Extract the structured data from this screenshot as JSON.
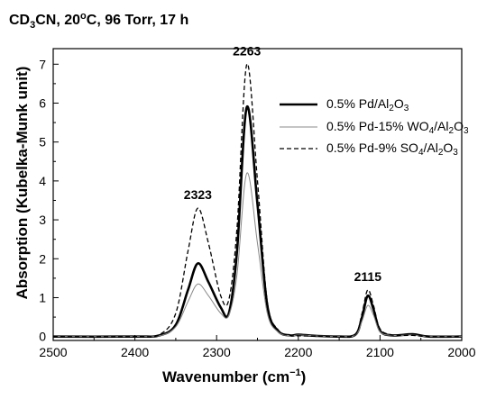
{
  "title": {
    "prefix": "CD",
    "sub": "3",
    "mid": "CN, 20",
    "sup": "o",
    "suffix": "C, 96 Torr, 17 h"
  },
  "axes": {
    "ylabel": "Absorption (Kubelka-Munk unit)",
    "xlabel": {
      "text": "Wavenumber (cm",
      "sup": "−1",
      "close": ")"
    }
  },
  "legend": [
    {
      "parts": [
        "0.5% Pd/Al",
        "2",
        "O",
        "3",
        ""
      ]
    },
    {
      "parts": [
        "0.5% Pd-15% WO",
        "4",
        "/Al",
        "2",
        "O",
        "3"
      ]
    },
    {
      "parts": [
        "0.5% Pd-9% SO",
        "4",
        "/Al",
        "2",
        "O",
        "3"
      ]
    }
  ],
  "chart_data": {
    "type": "line",
    "x_reversed": true,
    "xlim": [
      2500,
      2000
    ],
    "ylim": [
      -0.1,
      7.4
    ],
    "x_ticks": [
      2500,
      2400,
      2300,
      2200,
      2100,
      2000
    ],
    "y_ticks": [
      0,
      1,
      2,
      3,
      4,
      5,
      6,
      7
    ],
    "annotations": [
      {
        "text": "2323",
        "x": 2323,
        "y": 3.3
      },
      {
        "text": "2263",
        "x": 2263,
        "y": 7.0
      },
      {
        "text": "2115",
        "x": 2115,
        "y": 1.2
      }
    ],
    "series": [
      {
        "name": "0.5% Pd/Al2O3",
        "color": "#000000",
        "style": "solid-thick",
        "x": [
          2500,
          2400,
          2370,
          2350,
          2335,
          2323,
          2310,
          2295,
          2285,
          2275,
          2263,
          2250,
          2238,
          2225,
          2210,
          2200,
          2180,
          2150,
          2130,
          2122,
          2115,
          2108,
          2100,
          2085,
          2060,
          2040,
          2000
        ],
        "y": [
          0.0,
          0.0,
          0.03,
          0.3,
          1.2,
          1.88,
          1.4,
          0.75,
          0.6,
          2.2,
          5.9,
          3.4,
          0.8,
          0.15,
          0.03,
          0.05,
          0.02,
          0.0,
          0.05,
          0.5,
          1.05,
          0.7,
          0.15,
          0.03,
          0.06,
          0.0,
          0.0
        ]
      },
      {
        "name": "0.5% Pd-15% WO4/Al2O3",
        "color": "#888888",
        "style": "solid-thin",
        "x": [
          2500,
          2400,
          2370,
          2350,
          2335,
          2323,
          2310,
          2295,
          2285,
          2275,
          2263,
          2250,
          2238,
          2225,
          2210,
          2200,
          2180,
          2150,
          2130,
          2122,
          2115,
          2108,
          2100,
          2085,
          2060,
          2040,
          2000
        ],
        "y": [
          0.0,
          0.0,
          0.02,
          0.25,
          0.9,
          1.35,
          1.05,
          0.6,
          0.55,
          1.6,
          4.2,
          2.4,
          0.6,
          0.12,
          0.02,
          0.04,
          0.02,
          0.0,
          0.04,
          0.4,
          0.8,
          0.55,
          0.12,
          0.03,
          0.04,
          0.0,
          0.0
        ]
      },
      {
        "name": "0.5% Pd-9% SO4/Al2O3",
        "color": "#000000",
        "style": "dashed",
        "x": [
          2500,
          2400,
          2370,
          2350,
          2335,
          2323,
          2310,
          2295,
          2285,
          2275,
          2263,
          2250,
          2238,
          2225,
          2210,
          2200,
          2180,
          2150,
          2130,
          2122,
          2115,
          2108,
          2100,
          2085,
          2060,
          2040,
          2000
        ],
        "y": [
          0.0,
          0.0,
          0.05,
          0.6,
          2.2,
          3.3,
          2.4,
          1.05,
          0.95,
          2.8,
          7.0,
          4.0,
          0.9,
          0.18,
          0.03,
          0.02,
          0.01,
          0.0,
          0.06,
          0.6,
          1.2,
          0.8,
          0.2,
          0.04,
          0.03,
          0.0,
          0.0
        ]
      }
    ]
  }
}
